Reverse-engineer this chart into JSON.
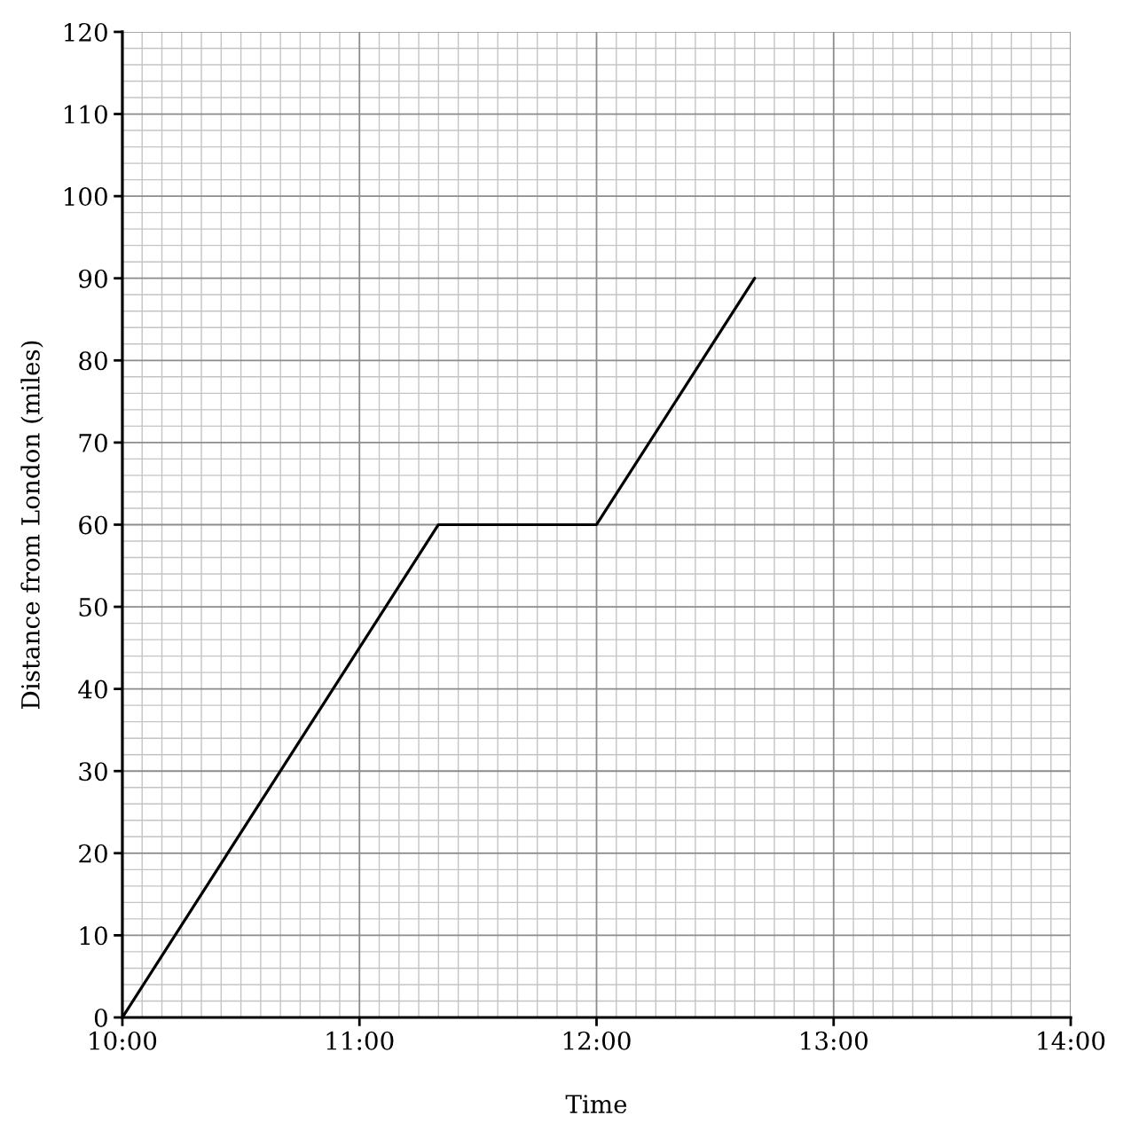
{
  "chart_data": {
    "type": "line",
    "xlabel": "Time",
    "ylabel": "Distance from London (miles)",
    "x": [
      10,
      11.333,
      12,
      12.667
    ],
    "series": [
      {
        "color": "#000000",
        "values": [
          0,
          60,
          60,
          90
        ]
      }
    ],
    "xlim": [
      10,
      14
    ],
    "xticks": [
      {
        "value": 10,
        "label": "10:00"
      },
      {
        "value": 11,
        "label": "11:00"
      },
      {
        "value": 12,
        "label": "12:00"
      },
      {
        "value": 13,
        "label": "13:00"
      },
      {
        "value": 14,
        "label": "14:00"
      }
    ],
    "ylim": [
      0,
      120
    ],
    "yticks": [
      0,
      10,
      20,
      30,
      40,
      50,
      60,
      70,
      80,
      90,
      100,
      110,
      120
    ],
    "grid": true,
    "marker": "none",
    "line_style": "solid"
  }
}
